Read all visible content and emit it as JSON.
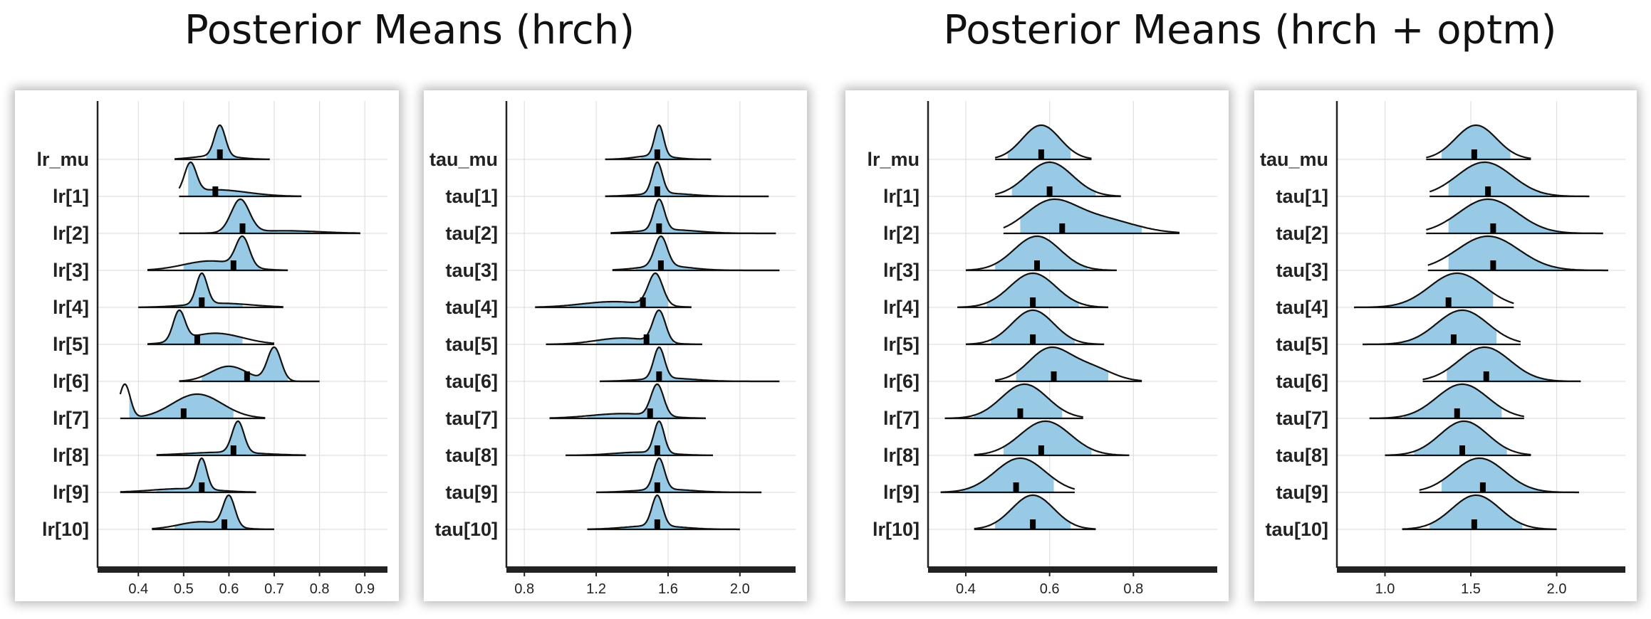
{
  "groups": [
    {
      "title": "Posterior Means (hrch)"
    },
    {
      "title": "Posterior Means (hrch + optm)"
    }
  ],
  "colors": {
    "fill": "#98cae6",
    "outline": "#111111",
    "axis": "#222222",
    "grid": "#e0e0e0",
    "median_mark": "#000000"
  },
  "chart_data": [
    {
      "type": "density_ridges",
      "group": "Posterior Means (hrch)",
      "labels": [
        "lr_mu",
        "lr[1]",
        "lr[2]",
        "lr[3]",
        "lr[4]",
        "lr[5]",
        "lr[6]",
        "lr[7]",
        "lr[8]",
        "lr[9]",
        "lr[10]"
      ],
      "xlim": [
        0.31,
        0.95
      ],
      "xticks": [
        0.4,
        0.5,
        0.6,
        0.7,
        0.8,
        0.9
      ],
      "xtick_labels": [
        "0.4",
        "0.5",
        "0.6",
        "0.7",
        "0.8",
        "0.9"
      ],
      "grid": true,
      "params": [
        {
          "label": "lr_mu",
          "range": [
            0.48,
            0.69
          ],
          "median": 0.58,
          "inner": [
            0.55,
            0.62
          ],
          "peaks": [
            [
              0.58,
              0.012,
              1.0
            ],
            [
              0.57,
              0.045,
              0.12
            ]
          ]
        },
        {
          "label": "lr[1]",
          "range": [
            0.49,
            0.76
          ],
          "median": 0.57,
          "inner": [
            0.51,
            0.68
          ],
          "peaks": [
            [
              0.515,
              0.013,
              0.8
            ],
            [
              0.57,
              0.07,
              0.18
            ]
          ]
        },
        {
          "label": "lr[2]",
          "range": [
            0.49,
            0.89
          ],
          "median": 0.63,
          "inner": [
            0.58,
            0.78
          ],
          "peaks": [
            [
              0.625,
              0.02,
              1.0
            ],
            [
              0.72,
              0.08,
              0.08
            ]
          ]
        },
        {
          "label": "lr[3]",
          "range": [
            0.42,
            0.73
          ],
          "median": 0.61,
          "inner": [
            0.5,
            0.67
          ],
          "peaks": [
            [
              0.63,
              0.015,
              1.0
            ],
            [
              0.56,
              0.06,
              0.32
            ]
          ]
        },
        {
          "label": "lr[4]",
          "range": [
            0.4,
            0.72
          ],
          "median": 0.54,
          "inner": [
            0.47,
            0.63
          ],
          "peaks": [
            [
              0.54,
              0.012,
              0.9
            ],
            [
              0.58,
              0.07,
              0.12
            ]
          ]
        },
        {
          "label": "lr[5]",
          "range": [
            0.42,
            0.7
          ],
          "median": 0.53,
          "inner": [
            0.45,
            0.63
          ],
          "peaks": [
            [
              0.49,
              0.013,
              0.8
            ],
            [
              0.57,
              0.06,
              0.3
            ]
          ]
        },
        {
          "label": "lr[6]",
          "range": [
            0.49,
            0.8
          ],
          "median": 0.64,
          "inner": [
            0.54,
            0.73
          ],
          "peaks": [
            [
              0.7,
              0.015,
              1.0
            ],
            [
              0.6,
              0.04,
              0.45
            ]
          ]
        },
        {
          "label": "lr[7]",
          "range": [
            0.36,
            0.68
          ],
          "median": 0.5,
          "inner": [
            0.38,
            0.61
          ],
          "peaks": [
            [
              0.37,
              0.012,
              0.7
            ],
            [
              0.53,
              0.055,
              0.5
            ]
          ]
        },
        {
          "label": "lr[8]",
          "range": [
            0.44,
            0.77
          ],
          "median": 0.61,
          "inner": [
            0.5,
            0.68
          ],
          "peaks": [
            [
              0.62,
              0.013,
              1.0
            ],
            [
              0.59,
              0.08,
              0.1
            ]
          ]
        },
        {
          "label": "lr[9]",
          "range": [
            0.36,
            0.66
          ],
          "median": 0.54,
          "inner": [
            0.44,
            0.6
          ],
          "peaks": [
            [
              0.54,
              0.011,
              1.0
            ],
            [
              0.5,
              0.07,
              0.12
            ]
          ]
        },
        {
          "label": "lr[10]",
          "range": [
            0.43,
            0.7
          ],
          "median": 0.59,
          "inner": [
            0.48,
            0.66
          ],
          "peaks": [
            [
              0.6,
              0.013,
              1.0
            ],
            [
              0.54,
              0.05,
              0.25
            ]
          ]
        }
      ]
    },
    {
      "type": "density_ridges",
      "group": "Posterior Means (hrch)",
      "labels": [
        "tau_mu",
        "tau[1]",
        "tau[2]",
        "tau[3]",
        "tau[4]",
        "tau[5]",
        "tau[6]",
        "tau[7]",
        "tau[8]",
        "tau[9]",
        "tau[10]"
      ],
      "xlim": [
        0.7,
        2.31
      ],
      "xticks": [
        0.8,
        1.2,
        1.6,
        2.0
      ],
      "xtick_labels": [
        "0.8",
        "1.2",
        "1.6",
        "2.0"
      ],
      "grid": true,
      "params": [
        {
          "label": "tau_mu",
          "range": [
            1.25,
            1.84
          ],
          "median": 1.54,
          "inner": [
            1.45,
            1.64
          ],
          "peaks": [
            [
              1.55,
              0.025,
              1.0
            ],
            [
              1.52,
              0.1,
              0.12
            ]
          ]
        },
        {
          "label": "tau[1]",
          "range": [
            1.25,
            2.16
          ],
          "median": 1.54,
          "inner": [
            1.4,
            1.75
          ],
          "peaks": [
            [
              1.54,
              0.028,
              1.0
            ],
            [
              1.58,
              0.14,
              0.1
            ]
          ]
        },
        {
          "label": "tau[2]",
          "range": [
            1.28,
            2.2
          ],
          "median": 1.55,
          "inner": [
            1.42,
            1.85
          ],
          "peaks": [
            [
              1.55,
              0.03,
              1.0
            ],
            [
              1.6,
              0.16,
              0.12
            ]
          ]
        },
        {
          "label": "tau[3]",
          "range": [
            1.29,
            2.22
          ],
          "median": 1.56,
          "inner": [
            1.42,
            1.8
          ],
          "peaks": [
            [
              1.56,
              0.035,
              1.0
            ],
            [
              1.58,
              0.14,
              0.15
            ]
          ]
        },
        {
          "label": "tau[4]",
          "range": [
            0.86,
            1.73
          ],
          "median": 1.46,
          "inner": [
            1.05,
            1.6
          ],
          "peaks": [
            [
              1.53,
              0.04,
              1.0
            ],
            [
              1.3,
              0.18,
              0.18
            ]
          ]
        },
        {
          "label": "tau[5]",
          "range": [
            0.92,
            1.79
          ],
          "median": 1.48,
          "inner": [
            1.2,
            1.63
          ],
          "peaks": [
            [
              1.55,
              0.035,
              1.0
            ],
            [
              1.35,
              0.15,
              0.2
            ]
          ]
        },
        {
          "label": "tau[6]",
          "range": [
            1.22,
            2.22
          ],
          "median": 1.55,
          "inner": [
            1.42,
            1.85
          ],
          "peaks": [
            [
              1.55,
              0.03,
              1.0
            ],
            [
              1.6,
              0.15,
              0.1
            ]
          ]
        },
        {
          "label": "tau[7]",
          "range": [
            0.94,
            1.81
          ],
          "median": 1.5,
          "inner": [
            1.15,
            1.64
          ],
          "peaks": [
            [
              1.54,
              0.035,
              1.0
            ],
            [
              1.35,
              0.18,
              0.15
            ]
          ]
        },
        {
          "label": "tau[8]",
          "range": [
            1.03,
            1.85
          ],
          "median": 1.54,
          "inner": [
            1.3,
            1.72
          ],
          "peaks": [
            [
              1.55,
              0.028,
              1.0
            ],
            [
              1.45,
              0.15,
              0.1
            ]
          ]
        },
        {
          "label": "tau[9]",
          "range": [
            1.2,
            2.12
          ],
          "median": 1.54,
          "inner": [
            1.38,
            1.8
          ],
          "peaks": [
            [
              1.55,
              0.03,
              1.0
            ],
            [
              1.58,
              0.15,
              0.1
            ]
          ]
        },
        {
          "label": "tau[10]",
          "range": [
            1.15,
            2.0
          ],
          "median": 1.54,
          "inner": [
            1.35,
            1.72
          ],
          "peaks": [
            [
              1.54,
              0.03,
              1.0
            ],
            [
              1.52,
              0.15,
              0.12
            ]
          ]
        }
      ]
    },
    {
      "type": "density_ridges",
      "group": "Posterior Means (hrch + optm)",
      "labels": [
        "lr_mu",
        "lr[1]",
        "lr[2]",
        "lr[3]",
        "lr[4]",
        "lr[5]",
        "lr[6]",
        "lr[7]",
        "lr[8]",
        "lr[9]",
        "lr[10]"
      ],
      "xlim": [
        0.31,
        1.0
      ],
      "xticks": [
        0.4,
        0.6,
        0.8
      ],
      "xtick_labels": [
        "0.4",
        "0.6",
        "0.8"
      ],
      "grid": true,
      "params": [
        {
          "label": "lr_mu",
          "range": [
            0.47,
            0.7
          ],
          "median": 0.58,
          "inner": [
            0.5,
            0.65
          ],
          "peaks": [
            [
              0.58,
              0.045,
              1.0
            ]
          ]
        },
        {
          "label": "lr[1]",
          "range": [
            0.47,
            0.77
          ],
          "median": 0.6,
          "inner": [
            0.51,
            0.71
          ],
          "peaks": [
            [
              0.6,
              0.055,
              1.0
            ]
          ]
        },
        {
          "label": "lr[2]",
          "range": [
            0.49,
            0.91
          ],
          "median": 0.63,
          "inner": [
            0.53,
            0.82
          ],
          "peaks": [
            [
              0.6,
              0.06,
              1.0
            ],
            [
              0.72,
              0.08,
              0.5
            ]
          ]
        },
        {
          "label": "lr[3]",
          "range": [
            0.4,
            0.76
          ],
          "median": 0.57,
          "inner": [
            0.47,
            0.69
          ],
          "peaks": [
            [
              0.57,
              0.055,
              1.0
            ]
          ]
        },
        {
          "label": "lr[4]",
          "range": [
            0.38,
            0.74
          ],
          "median": 0.56,
          "inner": [
            0.45,
            0.67
          ],
          "peaks": [
            [
              0.56,
              0.055,
              1.0
            ]
          ]
        },
        {
          "label": "lr[5]",
          "range": [
            0.4,
            0.73
          ],
          "median": 0.56,
          "inner": [
            0.46,
            0.66
          ],
          "peaks": [
            [
              0.56,
              0.05,
              1.0
            ]
          ]
        },
        {
          "label": "lr[6]",
          "range": [
            0.47,
            0.82
          ],
          "median": 0.61,
          "inner": [
            0.52,
            0.74
          ],
          "peaks": [
            [
              0.6,
              0.05,
              1.0
            ],
            [
              0.7,
              0.05,
              0.4
            ]
          ]
        },
        {
          "label": "lr[7]",
          "range": [
            0.35,
            0.68
          ],
          "median": 0.53,
          "inner": [
            0.42,
            0.63
          ],
          "peaks": [
            [
              0.54,
              0.055,
              1.0
            ]
          ]
        },
        {
          "label": "lr[8]",
          "range": [
            0.42,
            0.79
          ],
          "median": 0.58,
          "inner": [
            0.49,
            0.7
          ],
          "peaks": [
            [
              0.59,
              0.06,
              1.0
            ]
          ]
        },
        {
          "label": "lr[9]",
          "range": [
            0.34,
            0.66
          ],
          "median": 0.52,
          "inner": [
            0.39,
            0.61
          ],
          "peaks": [
            [
              0.53,
              0.06,
              1.0
            ]
          ]
        },
        {
          "label": "lr[10]",
          "range": [
            0.42,
            0.71
          ],
          "median": 0.56,
          "inner": [
            0.47,
            0.65
          ],
          "peaks": [
            [
              0.56,
              0.05,
              1.0
            ]
          ]
        }
      ]
    },
    {
      "type": "density_ridges",
      "group": "Posterior Means (hrch + optm)",
      "labels": [
        "tau_mu",
        "tau[1]",
        "tau[2]",
        "tau[3]",
        "tau[4]",
        "tau[5]",
        "tau[6]",
        "tau[7]",
        "tau[8]",
        "tau[9]",
        "tau[10]"
      ],
      "xlim": [
        0.72,
        2.4
      ],
      "xticks": [
        1.0,
        1.5,
        2.0
      ],
      "xtick_labels": [
        "1.0",
        "1.5",
        "2.0"
      ],
      "grid": true,
      "params": [
        {
          "label": "tau_mu",
          "range": [
            1.24,
            1.85
          ],
          "median": 1.52,
          "inner": [
            1.33,
            1.73
          ],
          "peaks": [
            [
              1.53,
              0.12,
              1.0
            ]
          ]
        },
        {
          "label": "tau[1]",
          "range": [
            1.26,
            2.19
          ],
          "median": 1.6,
          "inner": [
            1.37,
            1.95
          ],
          "peaks": [
            [
              1.58,
              0.16,
              1.0
            ]
          ]
        },
        {
          "label": "tau[2]",
          "range": [
            1.24,
            2.27
          ],
          "median": 1.63,
          "inner": [
            1.37,
            2.01
          ],
          "peaks": [
            [
              1.6,
              0.17,
              1.0
            ]
          ]
        },
        {
          "label": "tau[3]",
          "range": [
            1.25,
            2.3
          ],
          "median": 1.63,
          "inner": [
            1.37,
            2.02
          ],
          "peaks": [
            [
              1.6,
              0.18,
              1.0
            ]
          ]
        },
        {
          "label": "tau[4]",
          "range": [
            0.82,
            1.75
          ],
          "median": 1.37,
          "inner": [
            1.02,
            1.63
          ],
          "peaks": [
            [
              1.42,
              0.16,
              1.0
            ]
          ]
        },
        {
          "label": "tau[5]",
          "range": [
            0.87,
            1.79
          ],
          "median": 1.4,
          "inner": [
            1.07,
            1.65
          ],
          "peaks": [
            [
              1.45,
              0.15,
              1.0
            ]
          ]
        },
        {
          "label": "tau[6]",
          "range": [
            1.22,
            2.14
          ],
          "median": 1.59,
          "inner": [
            1.36,
            1.95
          ],
          "peaks": [
            [
              1.58,
              0.15,
              1.0
            ]
          ]
        },
        {
          "label": "tau[7]",
          "range": [
            0.91,
            1.81
          ],
          "median": 1.42,
          "inner": [
            1.11,
            1.68
          ],
          "peaks": [
            [
              1.45,
              0.15,
              1.0
            ]
          ]
        },
        {
          "label": "tau[8]",
          "range": [
            1.0,
            1.85
          ],
          "median": 1.45,
          "inner": [
            1.17,
            1.71
          ],
          "peaks": [
            [
              1.46,
              0.14,
              1.0
            ]
          ]
        },
        {
          "label": "tau[9]",
          "range": [
            1.2,
            2.13
          ],
          "median": 1.57,
          "inner": [
            1.33,
            1.91
          ],
          "peaks": [
            [
              1.55,
              0.15,
              1.0
            ]
          ]
        },
        {
          "label": "tau[10]",
          "range": [
            1.1,
            2.0
          ],
          "median": 1.52,
          "inner": [
            1.26,
            1.8
          ],
          "peaks": [
            [
              1.53,
              0.14,
              1.0
            ]
          ]
        }
      ]
    }
  ]
}
